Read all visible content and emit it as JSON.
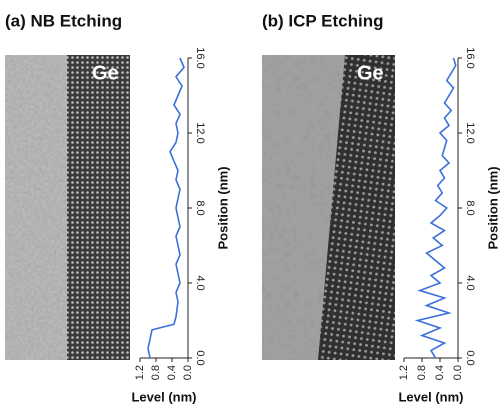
{
  "chart_data": [
    {
      "type": "line",
      "title": "(a) NB Etching",
      "annotation": "Ge",
      "xlabel": "Level (nm)",
      "ylabel": "Position (nm)",
      "xlim": [
        1.2,
        0
      ],
      "ylim": [
        0,
        16
      ],
      "xticks": [
        {
          "value": 1.2,
          "label": "1.2"
        },
        {
          "value": 0.8,
          "label": "0.8"
        },
        {
          "value": 0.4,
          "label": "0.4"
        },
        {
          "value": 0,
          "label": "0.0"
        }
      ],
      "yticks": [
        {
          "value": 0,
          "label": "0.0"
        },
        {
          "value": 4,
          "label": "4.0"
        },
        {
          "value": 8,
          "label": "8.0"
        },
        {
          "value": 12,
          "label": "12.0"
        },
        {
          "value": 16,
          "label": "16.0"
        }
      ],
      "series": [
        {
          "color": "#3b6fdc",
          "x": [
            0.95,
            1.0,
            0.95,
            0.9,
            0.35,
            0.3,
            0.25,
            0.3,
            0.2,
            0.25,
            0.3,
            0.2,
            0.25,
            0.3,
            0.2,
            0.25,
            0.3,
            0.25,
            0.2,
            0.3,
            0.25,
            0.35,
            0.45,
            0.3,
            0.25,
            0.3,
            0.2,
            0.35,
            0.25,
            0.15,
            0.3,
            0.1,
            0.2
          ],
          "values": [
            0,
            0.5,
            1.0,
            1.5,
            1.8,
            2.2,
            3,
            3.5,
            4,
            4.5,
            5,
            5.5,
            6,
            6.5,
            7,
            7.5,
            8,
            8.5,
            9,
            9.5,
            10,
            10.5,
            11,
            11.5,
            12,
            12.5,
            13,
            13.5,
            14,
            14.5,
            15,
            15.5,
            16
          ]
        }
      ]
    },
    {
      "type": "line",
      "title": "(b) ICP Etching",
      "annotation": "Ge",
      "xlabel": "Level (nm)",
      "ylabel": "Position (nm)",
      "xlim": [
        1.2,
        0
      ],
      "ylim": [
        0,
        16
      ],
      "xticks": [
        {
          "value": 1.2,
          "label": "1.2"
        },
        {
          "value": 0.8,
          "label": "0.8"
        },
        {
          "value": 0.4,
          "label": "0.4"
        },
        {
          "value": 0,
          "label": "0.0"
        }
      ],
      "yticks": [
        {
          "value": 0,
          "label": "0.0"
        },
        {
          "value": 4,
          "label": "4.0"
        },
        {
          "value": 8,
          "label": "8.0"
        },
        {
          "value": 12,
          "label": "12.0"
        },
        {
          "value": 16,
          "label": "16.0"
        }
      ],
      "series": [
        {
          "color": "#3b6fdc",
          "x": [
            0.5,
            0.6,
            0.3,
            0.8,
            0.4,
            0.9,
            0.2,
            0.7,
            0.3,
            0.85,
            0.4,
            0.6,
            0.3,
            0.5,
            0.7,
            0.35,
            0.55,
            0.3,
            0.6,
            0.4,
            0.25,
            0.5,
            0.35,
            0.45,
            0.3,
            0.4,
            0.2,
            0.35,
            0.3,
            0.25,
            0.4,
            0.2,
            0.3,
            0.15,
            0.3,
            0.2,
            0.1,
            0.25,
            0.15,
            0.05,
            0.1
          ],
          "values": [
            0,
            0.4,
            0.8,
            1.2,
            1.6,
            2,
            2.4,
            2.8,
            3.2,
            3.6,
            4,
            4.4,
            4.8,
            5.2,
            5.6,
            6,
            6.4,
            6.8,
            7.2,
            7.6,
            8,
            8.4,
            8.8,
            9.2,
            9.6,
            10,
            10.4,
            10.8,
            11.2,
            11.6,
            12,
            12.4,
            12.8,
            13.2,
            13.6,
            14,
            14.4,
            14.8,
            15.2,
            15.6,
            16
          ]
        }
      ]
    }
  ]
}
